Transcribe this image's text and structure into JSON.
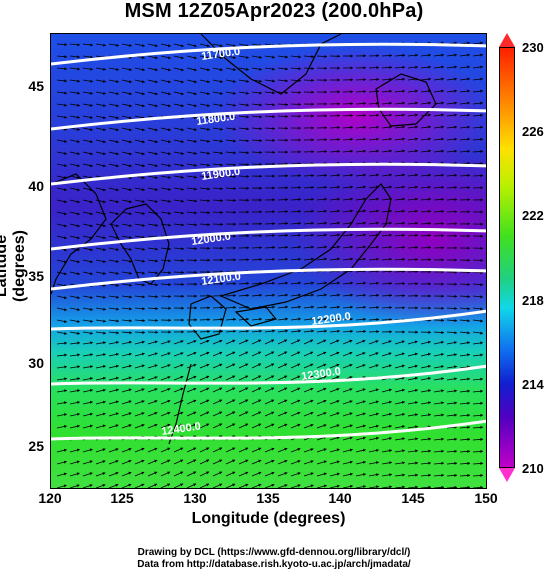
{
  "title": "MSM 12Z05Apr2023 (200.0hPa)",
  "axes": {
    "xlabel": "Longitude (degrees)",
    "ylabel": "Latitude  (degrees)",
    "xticks": [
      "120",
      "125",
      "130",
      "135",
      "140",
      "145",
      "150"
    ],
    "yticks": [
      "45",
      "40",
      "35",
      "30",
      "25"
    ]
  },
  "colorbar": {
    "labels": [
      "230",
      "226",
      "222",
      "218",
      "214",
      "210"
    ],
    "colors": [
      "#ff2000",
      "#ffe000",
      "#40e020",
      "#10d8e8",
      "#1020d0",
      "#c000c8"
    ]
  },
  "contours": [
    {
      "label": "11700.0"
    },
    {
      "label": "11800.0"
    },
    {
      "label": "11900.0"
    },
    {
      "label": "12000.0"
    },
    {
      "label": "12100.0"
    },
    {
      "label": "12200.0"
    },
    {
      "label": "12300.0"
    },
    {
      "label": "12400.0"
    }
  ],
  "footer": {
    "line1": "Drawing by DCL (https://www.gfd-dennou.org/library/dcl/)",
    "line2": "Data from http://database.rish.kyoto-u.ac.jp/arch/jmadata/"
  }
}
